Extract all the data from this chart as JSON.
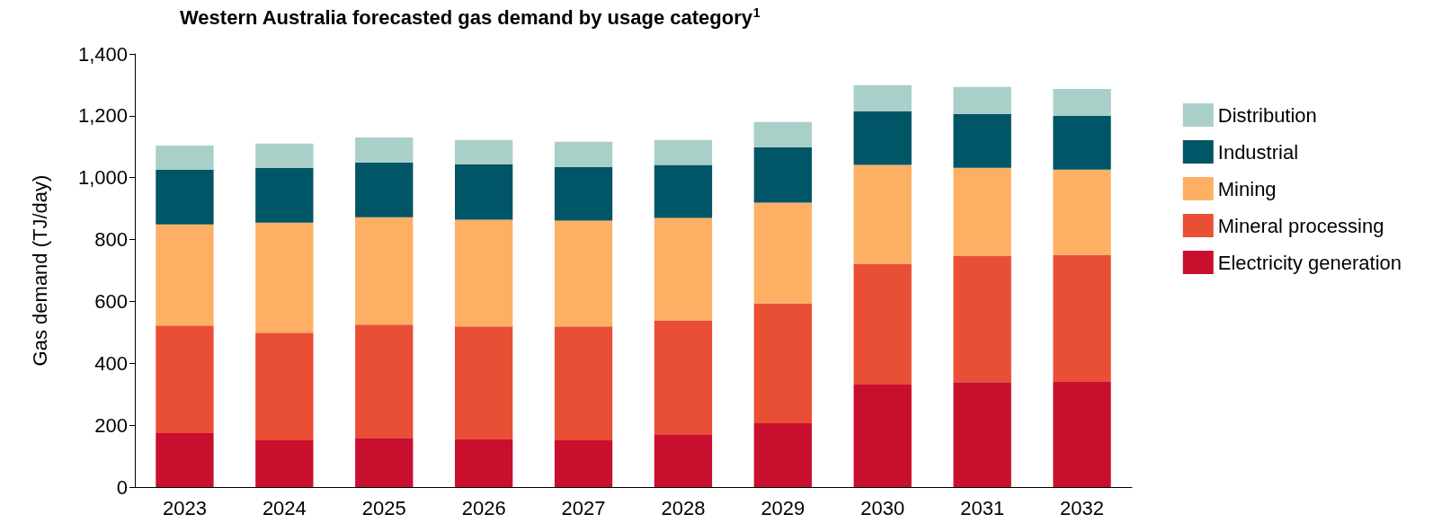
{
  "chart_data": {
    "type": "bar",
    "stacked": true,
    "title": "Western Australia forecasted gas demand by usage category$^{1}$",
    "ylabel": "Gas demand (TJ/day)",
    "categories": [
      "2023",
      "2024",
      "2025",
      "2026",
      "2027",
      "2028",
      "2029",
      "2030",
      "2031",
      "2032"
    ],
    "series": [
      {
        "name": "Electricity generation",
        "color": "#c8102e",
        "values": [
          174,
          151,
          159,
          154,
          151,
          171,
          206,
          333,
          339,
          342
        ]
      },
      {
        "name": "Mineral processing",
        "color": "#e94f35",
        "values": [
          348,
          348,
          366,
          365,
          368,
          368,
          388,
          389,
          409,
          409
        ]
      },
      {
        "name": "Mining",
        "color": "#fdb064",
        "values": [
          327,
          356,
          347,
          345,
          342,
          331,
          325,
          319,
          284,
          275
        ]
      },
      {
        "name": "Industrial",
        "color": "#005566",
        "values": [
          177,
          177,
          177,
          179,
          174,
          171,
          180,
          173,
          174,
          174
        ]
      },
      {
        "name": "Distribution",
        "color": "#a9cfc9",
        "values": [
          78,
          78,
          81,
          79,
          81,
          81,
          81,
          85,
          87,
          87
        ]
      }
    ],
    "ylim": [
      0,
      1400
    ],
    "yticks": [
      0,
      200,
      400,
      600,
      800,
      {
        "value": 1000,
        "label": "1,000"
      },
      {
        "value": 1200,
        "label": "1,200"
      },
      {
        "value": 1400,
        "label": "1,400"
      }
    ],
    "grid": false,
    "legend": "right"
  }
}
